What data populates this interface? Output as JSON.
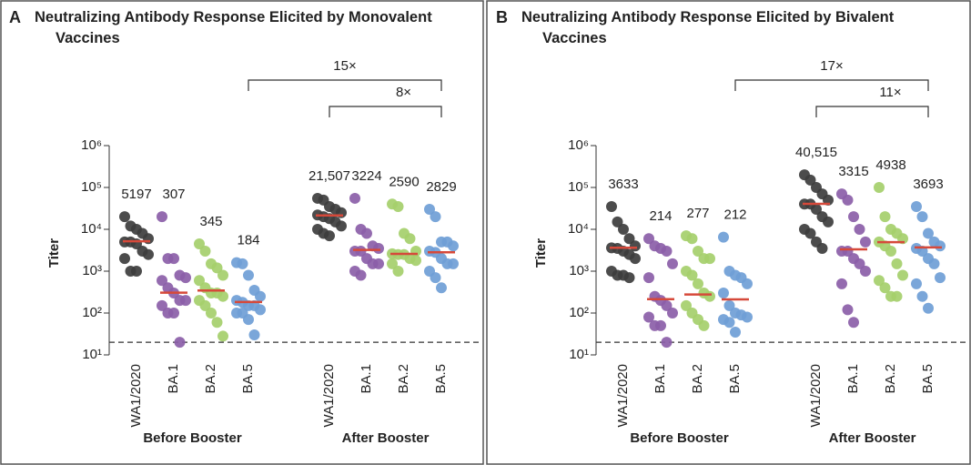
{
  "chart_data": [
    {
      "type": "strip",
      "panel": "A",
      "title": "Neutralizing Antibody Response Elicited by Monovalent Vaccines",
      "ylabel": "Titer",
      "log_scale": true,
      "ylim": [
        10,
        1000000
      ],
      "yticks": [
        {
          "value": 10,
          "label": "10¹"
        },
        {
          "value": 100,
          "label": "10²"
        },
        {
          "value": 1000,
          "label": "10³"
        },
        {
          "value": 10000,
          "label": "10⁴"
        },
        {
          "value": 100000,
          "label": "10⁵"
        },
        {
          "value": 1000000,
          "label": "10⁶"
        }
      ],
      "detection_limit": 20,
      "categories": [
        "WA1/2020",
        "BA.1",
        "BA.2",
        "BA.5",
        "WA1/2020",
        "BA.1",
        "BA.2",
        "BA.5"
      ],
      "colors": [
        "#3d3d3d",
        "#8b5ea8",
        "#a5cf6b",
        "#6f9ed6",
        "#3d3d3d",
        "#8b5ea8",
        "#a5cf6b",
        "#6f9ed6"
      ],
      "median_color": "#d6493a",
      "groups": [
        {
          "name": "Before Booster",
          "size": 4
        },
        {
          "name": "After Booster",
          "size": 4
        }
      ],
      "medians": [
        5197,
        307,
        345,
        184,
        21507,
        3224,
        2590,
        2829
      ],
      "median_labels": [
        "5197",
        "307",
        "345",
        "184",
        "21,507",
        "3224",
        "2590",
        "2829"
      ],
      "comparisons": [
        {
          "label": "15×",
          "categories": [
            3,
            7
          ]
        },
        {
          "label": "8×",
          "categories": [
            4,
            7
          ]
        }
      ],
      "points": [
        [
          20000,
          12000,
          10000,
          8000,
          6000,
          5000,
          5000,
          4500,
          3000,
          2500,
          2000,
          1000,
          1000
        ],
        [
          20000,
          2000,
          2000,
          800,
          700,
          600,
          400,
          300,
          200,
          200,
          150,
          100,
          100,
          20
        ],
        [
          4500,
          3000,
          1500,
          1200,
          800,
          600,
          400,
          300,
          300,
          250,
          200,
          150,
          100,
          60,
          28
        ],
        [
          1600,
          1500,
          800,
          350,
          250,
          200,
          180,
          150,
          150,
          120,
          100,
          100,
          70,
          30
        ],
        [
          55000,
          50000,
          35000,
          30000,
          25000,
          22000,
          20000,
          18000,
          15000,
          12000,
          10000,
          8000,
          7000
        ],
        [
          55000,
          10000,
          8000,
          4000,
          3500,
          3000,
          3000,
          2000,
          1500,
          1500,
          1000,
          800
        ],
        [
          40000,
          35000,
          8000,
          6000,
          3000,
          2600,
          2500,
          2500,
          2000,
          1800,
          1500,
          1000
        ],
        [
          30000,
          20000,
          5000,
          5000,
          4000,
          3000,
          2800,
          2000,
          1500,
          1500,
          1000,
          700,
          400
        ]
      ]
    },
    {
      "type": "strip",
      "panel": "B",
      "title": "Neutralizing Antibody Response Elicited by Bivalent Vaccines",
      "ylabel": "Titer",
      "log_scale": true,
      "ylim": [
        10,
        1000000
      ],
      "yticks": [
        {
          "value": 10,
          "label": "10¹"
        },
        {
          "value": 100,
          "label": "10²"
        },
        {
          "value": 1000,
          "label": "10³"
        },
        {
          "value": 10000,
          "label": "10⁴"
        },
        {
          "value": 100000,
          "label": "10⁵"
        },
        {
          "value": 1000000,
          "label": "10⁶"
        }
      ],
      "detection_limit": 20,
      "categories": [
        "WA1/2020",
        "BA.1",
        "BA.2",
        "BA.5",
        "WA1/2020",
        "BA.1",
        "BA.2",
        "BA.5"
      ],
      "colors": [
        "#3d3d3d",
        "#8b5ea8",
        "#a5cf6b",
        "#6f9ed6",
        "#3d3d3d",
        "#8b5ea8",
        "#a5cf6b",
        "#6f9ed6"
      ],
      "median_color": "#d6493a",
      "groups": [
        {
          "name": "Before Booster",
          "size": 4
        },
        {
          "name": "After Booster",
          "size": 4
        }
      ],
      "medians": [
        3633,
        214,
        277,
        212,
        40515,
        3315,
        4938,
        3693
      ],
      "median_labels": [
        "3633",
        "214",
        "277",
        "212",
        "40,515",
        "3315",
        "4938",
        "3693"
      ],
      "comparisons": [
        {
          "label": "17×",
          "categories": [
            3,
            7
          ]
        },
        {
          "label": "11×",
          "categories": [
            4,
            7
          ]
        }
      ],
      "points": [
        [
          35000,
          15000,
          10000,
          6000,
          4000,
          3600,
          3500,
          3000,
          2500,
          2000,
          1000,
          800,
          800,
          700
        ],
        [
          6000,
          4000,
          3500,
          3000,
          1500,
          700,
          250,
          200,
          150,
          100,
          80,
          50,
          50,
          20
        ],
        [
          7000,
          6000,
          3000,
          2000,
          2000,
          1000,
          800,
          500,
          300,
          250,
          150,
          100,
          70,
          50
        ],
        [
          6500,
          1000,
          800,
          700,
          500,
          300,
          150,
          100,
          90,
          80,
          70,
          60,
          35
        ],
        [
          200000,
          150000,
          100000,
          70000,
          50000,
          40000,
          40000,
          30000,
          20000,
          15000,
          10000,
          8000,
          5000,
          3500
        ],
        [
          70000,
          50000,
          20000,
          10000,
          5000,
          3000,
          3000,
          2000,
          1500,
          1000,
          500,
          120,
          60
        ],
        [
          100000,
          20000,
          10000,
          8000,
          6000,
          5000,
          4000,
          3000,
          1500,
          800,
          600,
          400,
          250,
          250
        ],
        [
          35000,
          20000,
          8000,
          5000,
          4000,
          3500,
          3000,
          2000,
          1500,
          700,
          500,
          250,
          130
        ]
      ]
    }
  ]
}
